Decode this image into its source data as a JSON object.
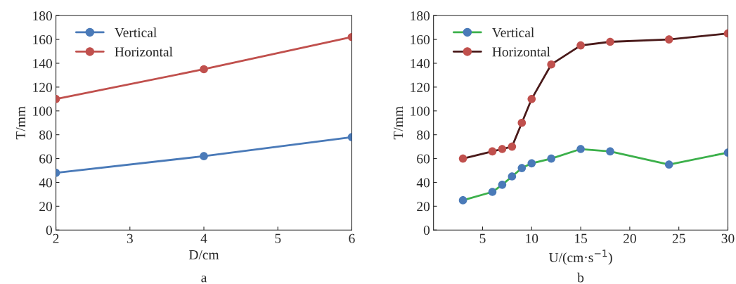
{
  "chart_data": [
    {
      "type": "line",
      "title": "a",
      "xlabel": "D/cm",
      "ylabel": "T/mm",
      "x": [
        2,
        4,
        6
      ],
      "xlim": [
        2,
        6
      ],
      "xticks": [
        2,
        3,
        4,
        5,
        6
      ],
      "ylim": [
        0,
        180
      ],
      "yticks": [
        0,
        20,
        40,
        60,
        80,
        100,
        120,
        140,
        160,
        180
      ],
      "grid": false,
      "legend": "top left",
      "marker": "circle",
      "line_style": "solid",
      "series": [
        {
          "name": "Vertical",
          "color": "#4a7ab8",
          "values": [
            48,
            62,
            78
          ]
        },
        {
          "name": "Horizontal",
          "color": "#c0504d",
          "values": [
            110,
            135,
            162
          ]
        }
      ]
    },
    {
      "type": "line",
      "title": "b",
      "xlabel": "U/(cm·s$^{−1}$)",
      "ylabel": "T/mm",
      "xlim": [
        0,
        30
      ],
      "xticks": [
        5,
        10,
        15,
        20,
        25,
        30
      ],
      "ylim": [
        0,
        180
      ],
      "yticks": [
        0,
        20,
        40,
        60,
        80,
        100,
        120,
        140,
        160,
        180
      ],
      "grid": false,
      "legend": "top left",
      "marker": "circle",
      "line_style": "solid",
      "series": [
        {
          "name": "Vertical",
          "color": "#3cb04b",
          "colors": [
            "#4a7ab8",
            "#4a7ab8",
            "#4a7ab8",
            "#4a7ab8",
            "#4a7ab8",
            "#4a7ab8",
            "#4a7ab8",
            "#4a7ab8",
            "#4a7ab8",
            "#4a7ab8",
            "#4a7ab8"
          ],
          "x": [
            3,
            6,
            7,
            8,
            9,
            10,
            12,
            15,
            18,
            24,
            30
          ],
          "values": [
            25,
            32,
            38,
            45,
            52,
            56,
            60,
            68,
            66,
            55,
            65
          ]
        },
        {
          "name": "Horizontal",
          "color": "#4a1a1a",
          "colors": [
            "#c0504d",
            "#c0504d",
            "#c0504d",
            "#c0504d",
            "#c0504d",
            "#c0504d",
            "#c0504d",
            "#c0504d",
            "#c0504d",
            "#c0504d",
            "#c0504d"
          ],
          "x": [
            3,
            6,
            7,
            8,
            9,
            10,
            12,
            15,
            18,
            24,
            30
          ],
          "values": [
            60,
            66,
            68,
            70,
            90,
            110,
            139,
            155,
            158,
            160,
            165
          ]
        }
      ]
    }
  ]
}
